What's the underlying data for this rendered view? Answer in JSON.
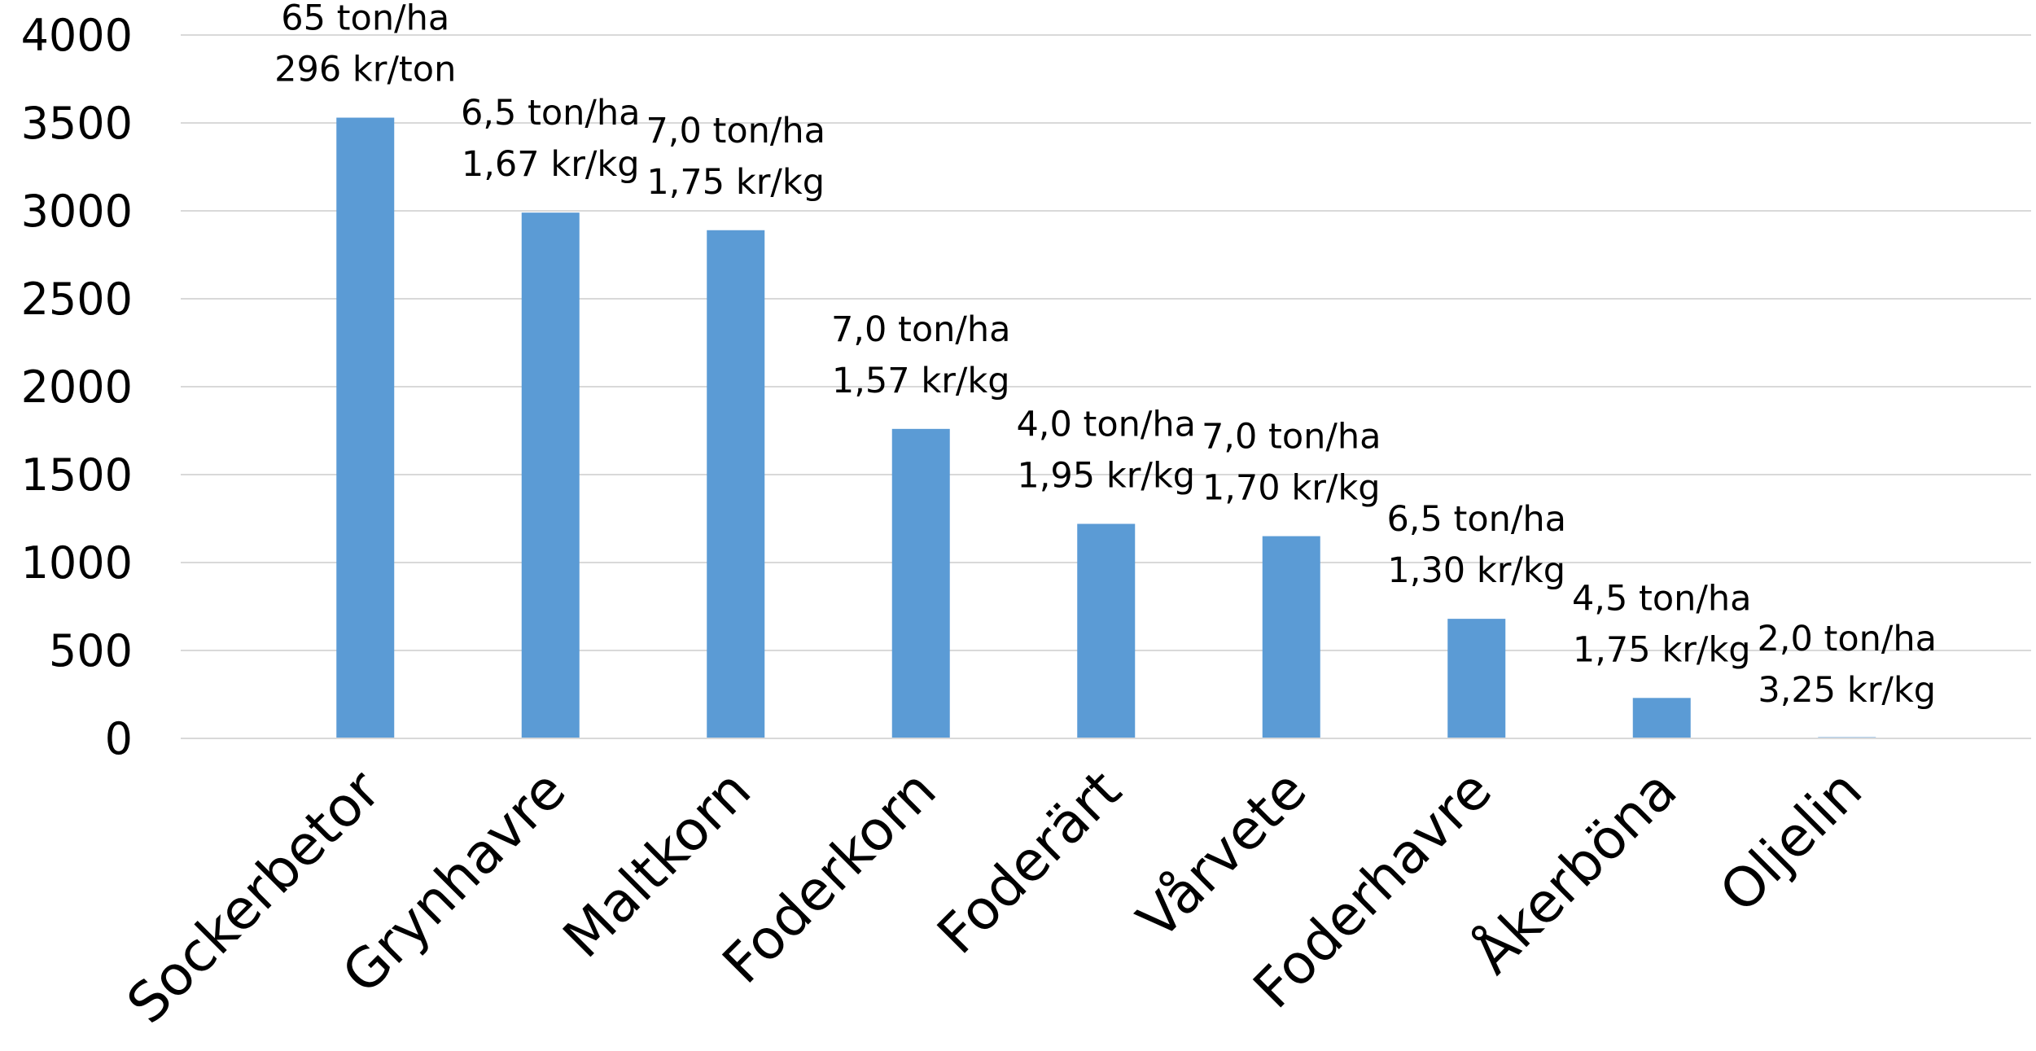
{
  "chart_data": {
    "type": "bar",
    "title": "",
    "xlabel": "",
    "ylabel": "",
    "ylim": [
      0,
      4000
    ],
    "yticks": [
      0,
      500,
      1000,
      1500,
      2000,
      2500,
      3000,
      3500,
      4000
    ],
    "grid": true,
    "legend": "none",
    "bar_color": "#5b9bd5",
    "grid_color": "#d9d9d9",
    "categories": [
      "Sockerbetor",
      "Grynhavre",
      "Maltkorn",
      "Foderkorn",
      "Foderärt",
      "Vårvete",
      "Foderhavre",
      "Åkerböna",
      "Oljelin"
    ],
    "values": [
      3530,
      2990,
      2890,
      1760,
      1220,
      1150,
      680,
      230,
      0
    ],
    "annotations": [
      {
        "line1": "65 ton/ha",
        "line2": "296 kr/ton"
      },
      {
        "line1": "6,5 ton/ha",
        "line2": "1,67 kr/kg"
      },
      {
        "line1": "7,0 ton/ha",
        "line2": "1,75 kr/kg"
      },
      {
        "line1": "7,0 ton/ha",
        "line2": "1,57 kr/kg"
      },
      {
        "line1": "4,0 ton/ha",
        "line2": "1,95 kr/kg"
      },
      {
        "line1": "7,0 ton/ha",
        "line2": "1,70 kr/kg"
      },
      {
        "line1": "6,5 ton/ha",
        "line2": "1,30 kr/kg"
      },
      {
        "line1": "4,5 ton/ha",
        "line2": "1,75 kr/kg"
      },
      {
        "line1": "2,0 ton/ha",
        "line2": "3,25 kr/kg"
      }
    ]
  }
}
